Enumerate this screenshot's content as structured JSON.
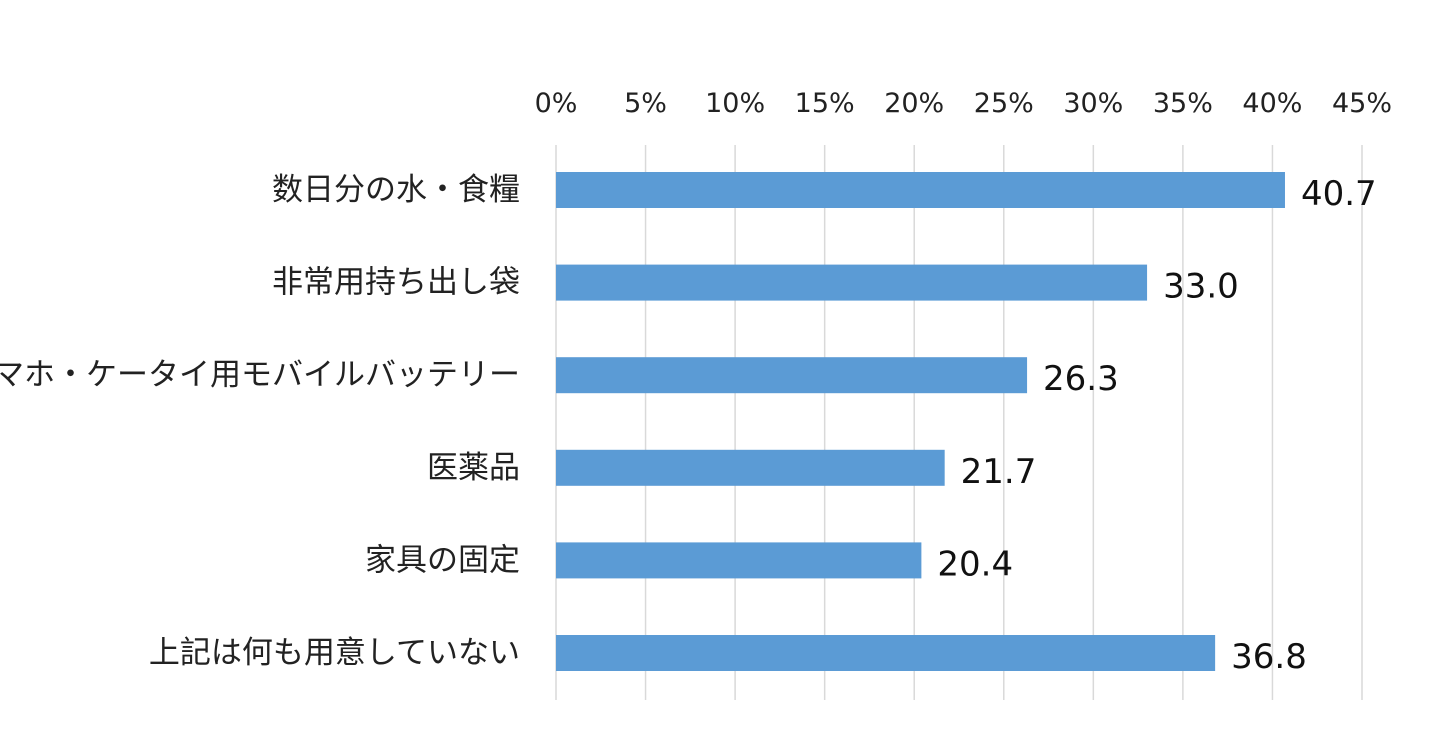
{
  "chart_data": {
    "type": "bar",
    "orientation": "horizontal",
    "categories": [
      "数日分の水・食糧",
      "非常用持ち出し袋",
      "スマホ・ケータイ用モバイルバッテリー",
      "医薬品",
      "家具の固定",
      "上記は何も用意していない"
    ],
    "values": [
      40.7,
      33.0,
      26.3,
      21.7,
      20.4,
      36.8
    ],
    "value_labels": [
      "40.7",
      "33.0",
      "26.3",
      "21.7",
      "20.4",
      "36.8"
    ],
    "x_ticks": [
      "0%",
      "5%",
      "10%",
      "15%",
      "20%",
      "25%",
      "30%",
      "35%",
      "40%",
      "45%"
    ],
    "xlim": [
      0,
      45
    ],
    "x_tick_step": 5,
    "x_axis_position": "top",
    "grid": true,
    "bar_color": "#5b9bd5",
    "grid_color": "#d9d9d9",
    "title": "",
    "xlabel": "",
    "ylabel": ""
  }
}
